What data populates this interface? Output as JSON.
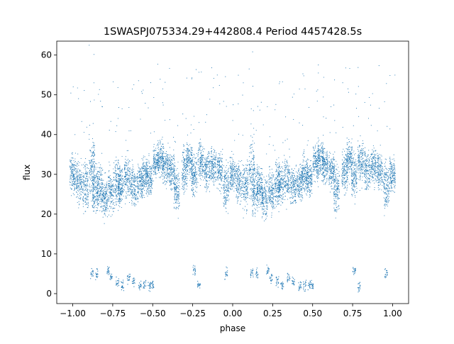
{
  "chart_data": {
    "type": "scatter",
    "title": "1SWASPJ075334.29+442808.4 Period 4457428.5s",
    "xlabel": "phase",
    "ylabel": "flux",
    "xlim": [
      -1.1,
      1.1
    ],
    "ylim": [
      -2.5,
      63.5
    ],
    "x_ticks": [
      -1.0,
      -0.75,
      -0.5,
      -0.25,
      0.0,
      0.25,
      0.5,
      0.75,
      1.0
    ],
    "x_tick_labels": [
      "−1.00",
      "−0.75",
      "−0.50",
      "−0.25",
      "0.00",
      "0.25",
      "0.50",
      "0.75",
      "1.00"
    ],
    "y_ticks": [
      0,
      10,
      20,
      30,
      40,
      50,
      60
    ],
    "y_tick_labels": [
      "0",
      "10",
      "20",
      "30",
      "40",
      "50",
      "60"
    ],
    "grid": false,
    "marker_color": "#1f77b4",
    "series": [
      {
        "x": [
          -1.0,
          -0.96,
          -0.92,
          -0.88,
          -0.86,
          -0.83,
          -0.8,
          -0.76,
          -0.72,
          -0.7,
          -0.66,
          -0.62,
          -0.58,
          -0.55,
          -0.52,
          -0.48,
          -0.45,
          -0.42,
          -0.38,
          -0.35,
          -0.3,
          -0.27,
          -0.24,
          -0.2,
          -0.16,
          -0.12,
          -0.08,
          -0.04,
          0.0,
          0.04,
          0.08,
          0.12,
          0.14,
          0.17,
          0.2,
          0.24,
          0.28,
          0.3,
          0.34,
          0.38,
          0.42,
          0.45,
          0.48,
          0.52,
          0.55,
          0.58,
          0.62,
          0.65,
          0.7,
          0.73,
          0.76,
          0.8,
          0.84,
          0.88,
          0.92,
          0.96,
          1.0
        ],
        "y": [
          30,
          28,
          27,
          31,
          26,
          27,
          24,
          26,
          28,
          27,
          29,
          27,
          28,
          30,
          29,
          33,
          34,
          32,
          31,
          26,
          31,
          34,
          30,
          33,
          31,
          32,
          31,
          27,
          30,
          28,
          27,
          31,
          26,
          27,
          24,
          26,
          28,
          27,
          29,
          27,
          28,
          30,
          29,
          33,
          34,
          32,
          31,
          26,
          31,
          34,
          30,
          33,
          31,
          32,
          31,
          27,
          30
        ],
        "y_min": [
          22,
          20,
          18,
          19,
          17,
          18,
          17,
          18,
          19,
          20,
          21,
          21,
          22,
          23,
          22,
          26,
          27,
          26,
          24,
          16,
          22,
          26,
          22,
          24,
          23,
          25,
          24,
          19,
          22,
          20,
          18,
          19,
          17,
          18,
          17,
          18,
          19,
          20,
          21,
          21,
          22,
          23,
          22,
          26,
          27,
          26,
          24,
          16,
          22,
          26,
          22,
          24,
          23,
          25,
          24,
          19,
          22
        ],
        "y_max": [
          38,
          37,
          39,
          46,
          37,
          36,
          34,
          36,
          38,
          37,
          38,
          37,
          37,
          38,
          37,
          40,
          41,
          40,
          39,
          37,
          40,
          42,
          39,
          41,
          40,
          41,
          40,
          38,
          38,
          37,
          39,
          46,
          37,
          36,
          34,
          36,
          38,
          37,
          38,
          37,
          37,
          38,
          37,
          40,
          41,
          40,
          39,
          37,
          40,
          42,
          39,
          41,
          40,
          41,
          40,
          38,
          38
        ]
      }
    ],
    "low_clusters": [
      {
        "x": -0.88,
        "y": 5
      },
      {
        "x": -0.85,
        "y": 5
      },
      {
        "x": -0.78,
        "y": 6
      },
      {
        "x": -0.76,
        "y": 4
      },
      {
        "x": -0.72,
        "y": 3
      },
      {
        "x": -0.69,
        "y": 2
      },
      {
        "x": -0.65,
        "y": 4
      },
      {
        "x": -0.62,
        "y": 3
      },
      {
        "x": -0.58,
        "y": 2
      },
      {
        "x": -0.55,
        "y": 2
      },
      {
        "x": -0.52,
        "y": 2
      },
      {
        "x": -0.5,
        "y": 2
      },
      {
        "x": -0.24,
        "y": 6
      },
      {
        "x": -0.21,
        "y": 2
      },
      {
        "x": -0.04,
        "y": 5
      },
      {
        "x": 0.12,
        "y": 5
      },
      {
        "x": 0.15,
        "y": 5
      },
      {
        "x": 0.22,
        "y": 6
      },
      {
        "x": 0.24,
        "y": 4
      },
      {
        "x": 0.28,
        "y": 3
      },
      {
        "x": 0.31,
        "y": 2
      },
      {
        "x": 0.35,
        "y": 4
      },
      {
        "x": 0.38,
        "y": 3
      },
      {
        "x": 0.42,
        "y": 2
      },
      {
        "x": 0.45,
        "y": 2
      },
      {
        "x": 0.48,
        "y": 2
      },
      {
        "x": 0.5,
        "y": 2
      },
      {
        "x": 0.76,
        "y": 6
      },
      {
        "x": 0.79,
        "y": 2
      },
      {
        "x": 0.96,
        "y": 5
      }
    ]
  }
}
